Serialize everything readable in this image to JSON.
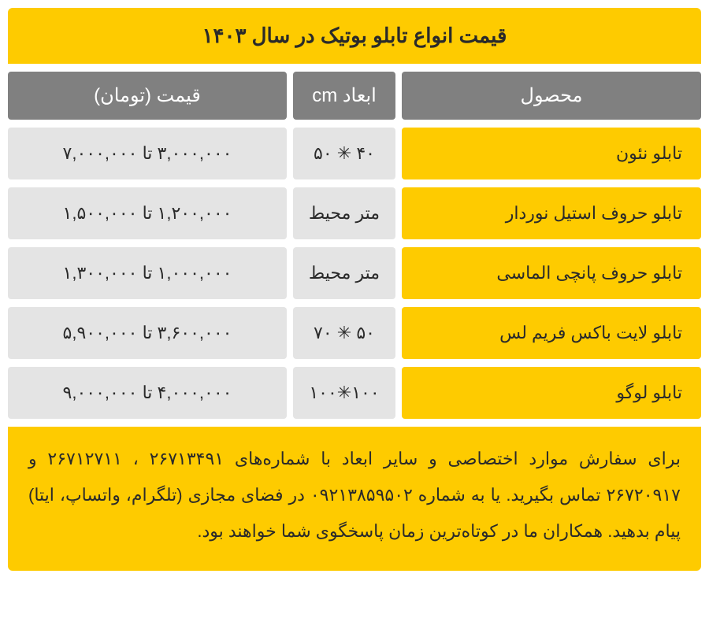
{
  "colors": {
    "accent": "#fecb00",
    "header_bg": "#808080",
    "header_text": "#ffffff",
    "data_bg": "#e4e4e4",
    "title_text": "#2a2a2a",
    "row_text": "#2a2a2a"
  },
  "title": "قیمت انواع تابلو بوتیک در سال ۱۴۰۳",
  "columns": {
    "product": "محصول",
    "dimensions": "ابعاد cm",
    "price": "قیمت (تومان)"
  },
  "rows": [
    {
      "product": "تابلو نئون",
      "dimensions": "۴۰ ✳ ۵۰",
      "price": "۳,۰۰۰,۰۰۰ تا ۷,۰۰۰,۰۰۰"
    },
    {
      "product": "تابلو حروف استیل نوردار",
      "dimensions": "متر محیط",
      "price": "۱,۲۰۰,۰۰۰ تا ۱,۵۰۰,۰۰۰"
    },
    {
      "product": "تابلو حروف پانچی الماسی",
      "dimensions": "متر محیط",
      "price": "۱,۰۰۰,۰۰۰ تا ۱,۳۰۰,۰۰۰"
    },
    {
      "product": "تابلو لایت باکس فریم لس",
      "dimensions": "۵۰ ✳ ۷۰",
      "price": "۳,۶۰۰,۰۰۰ تا ۵,۹۰۰,۰۰۰"
    },
    {
      "product": "تابلو لوگو",
      "dimensions": "۱۰۰✳۱۰۰",
      "price": "۴,۰۰۰,۰۰۰ تا ۹,۰۰۰,۰۰۰"
    }
  ],
  "footer": "برای سفارش موارد اختصاصی و سایر ابعاد با شماره‌های ۲۶۷۱۳۴۹۱ ، ۲۶۷۱۲۷۱۱ و ۲۶۷۲۰۹۱۷ تماس بگیرید. یا به شماره ۰۹۲۱۳۸۵۹۵۰۲ در فضای مجازی (تلگرام، واتساپ، ایتا) پیام بدهید. همکاران ما در کوتاه‌ترین زمان پاسخگوی شما خواهند بود."
}
